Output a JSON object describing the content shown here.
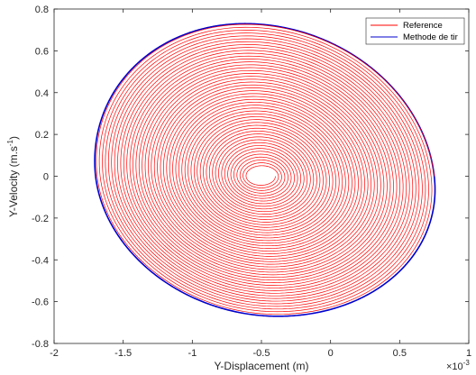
{
  "chart_data": {
    "type": "line",
    "title": "",
    "xlabel": "Y-Displacement (m)",
    "ylabel": "Y-Velocity (m.s",
    "ylabel_exponent": "-1",
    "ylabel_close": ")",
    "x_multiplier_base": "×10",
    "x_multiplier_exponent": "-3",
    "xlim": [
      -2,
      1
    ],
    "ylim": [
      -0.8,
      0.8
    ],
    "xticks": [
      -2,
      -1.5,
      -1,
      -0.5,
      0,
      0.5,
      1
    ],
    "xtick_labels": [
      "-2",
      "-1.5",
      "-1",
      "-0.5",
      "0",
      "0.5",
      "1"
    ],
    "yticks": [
      -0.8,
      -0.6,
      -0.4,
      -0.2,
      0,
      0.2,
      0.4,
      0.6,
      0.8
    ],
    "ytick_labels": [
      "-0.8",
      "-0.6",
      "-0.4",
      "-0.2",
      "0",
      "0.2",
      "0.4",
      "0.6",
      "0.8"
    ],
    "grid": false,
    "legend_position": "top-right",
    "series": [
      {
        "name": "Reference",
        "color": "#ff0000",
        "description_points": {
          "center": [
            -0.5,
            0.0
          ],
          "inner_radius_x": 0.1,
          "inner_radius_y": 0.04,
          "outer_x_range": [
            -1.7,
            0.75
          ],
          "outer_y_range": [
            -0.67,
            0.73
          ],
          "turns": 50
        }
      },
      {
        "name": "Methode de tir",
        "color": "#0000cc",
        "description_points": {
          "x_range": [
            -1.7,
            0.75
          ],
          "y_range": [
            -0.67,
            0.73
          ]
        }
      }
    ]
  }
}
